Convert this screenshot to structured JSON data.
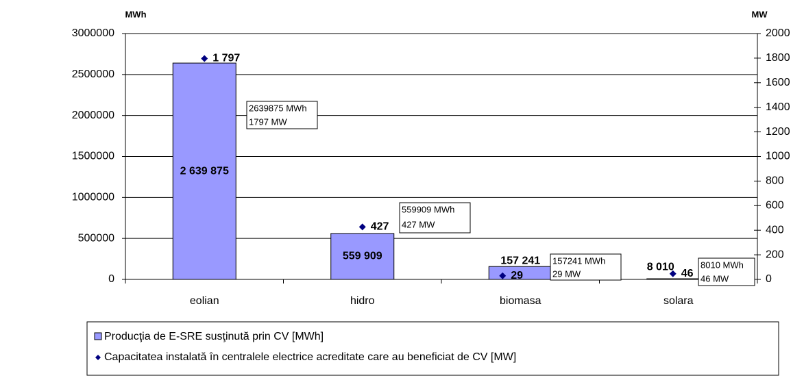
{
  "chart_data": {
    "type": "bar",
    "y_label": "MWh",
    "y2_label": "MW",
    "categories": [
      "eolian",
      "hidro",
      "biomasa",
      "solara"
    ],
    "series": [
      {
        "name": "Producţia de E-SRE susţinută prin CV [MWh]",
        "type": "bar",
        "color": "#9999ff",
        "values": [
          2639875,
          559909,
          157241,
          8010
        ],
        "value_labels": [
          "2 639 875",
          "559 909",
          "157 241",
          "8 010"
        ]
      },
      {
        "name": "Capacitatea instalată în centralele electrice acreditate care au beneficiat de CV [MW]",
        "type": "scatter",
        "axis": "y2",
        "color": "#000080",
        "values": [
          1797,
          427,
          29,
          46
        ],
        "value_labels": [
          "1 797",
          "427",
          "29",
          "46"
        ]
      }
    ],
    "annotations": [
      [
        "2639875 MWh",
        "1797 MW"
      ],
      [
        "559909 MWh",
        "427 MW"
      ],
      [
        "157241 MWh",
        "29 MW"
      ],
      [
        "8010 MWh",
        "46 MW"
      ]
    ],
    "ylim": [
      0,
      3000000
    ],
    "yticks": [
      0,
      500000,
      1000000,
      1500000,
      2000000,
      2500000,
      3000000
    ],
    "y2lim": [
      0,
      2000
    ],
    "y2ticks": [
      0,
      200,
      400,
      600,
      800,
      1000,
      1200,
      1400,
      1600,
      1800,
      2000
    ],
    "grid": true,
    "legend": "bottom"
  }
}
